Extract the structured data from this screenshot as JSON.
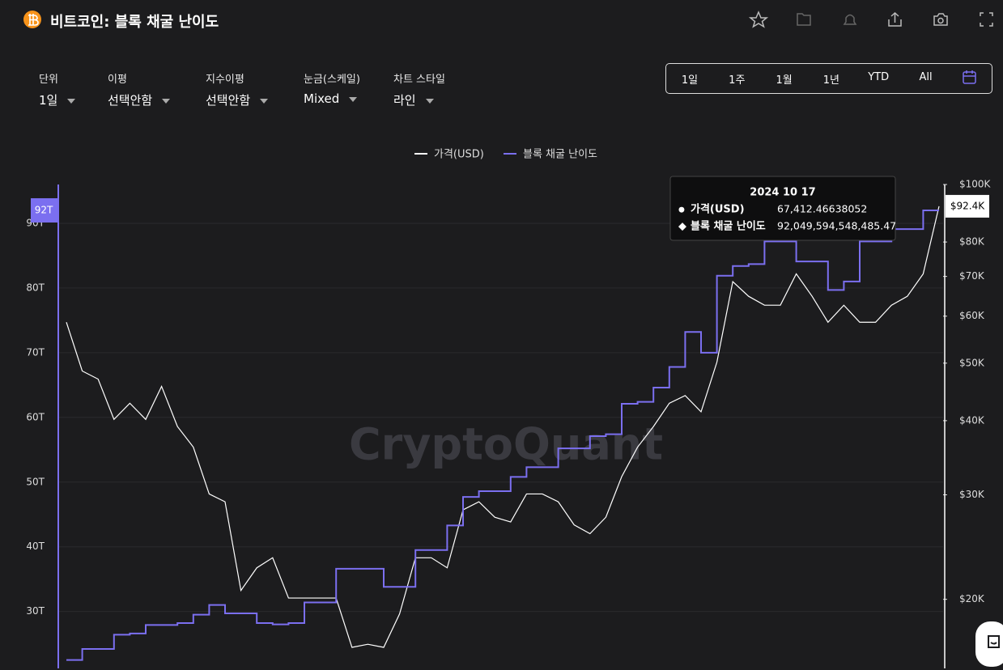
{
  "header": {
    "title": "비트코인: 블록 채굴 난이도"
  },
  "controls": [
    {
      "label": "단위",
      "value": "1일"
    },
    {
      "label": "이평",
      "value": "선택안함"
    },
    {
      "label": "지수이평",
      "value": "선택안함"
    },
    {
      "label": "눈금(스케일)",
      "value": "Mixed"
    },
    {
      "label": "차트 스타일",
      "value": "라인"
    }
  ],
  "time_buttons": [
    "1일",
    "1주",
    "1월",
    "1년",
    "YTD",
    "All"
  ],
  "watermark": "CryptoQuant",
  "tooltip": {
    "date": "2024 10 17",
    "rows": [
      {
        "label": "가격(USD)",
        "value": "67,412.46638052"
      },
      {
        "label": "블록 채굴 난이도",
        "value": "92,049,594,548,485.47"
      }
    ]
  },
  "chart_data": {
    "type": "line",
    "crosshair_labels": {
      "y": "92T",
      "y2": "$92.4K"
    },
    "ylim": [
      21.2,
      96
    ],
    "yticks": [
      {
        "value": 30,
        "label": "30T"
      },
      {
        "value": 40,
        "label": "40T"
      },
      {
        "value": 50,
        "label": "50T"
      },
      {
        "value": 60,
        "label": "60T"
      },
      {
        "value": 70,
        "label": "70T"
      },
      {
        "value": 80,
        "label": "80T"
      },
      {
        "value": 90,
        "label": "90T"
      }
    ],
    "y2lim": [
      15300,
      100000
    ],
    "y2_log": true,
    "y2ticks": [
      {
        "value": 20000,
        "label": "$20K"
      },
      {
        "value": 30000,
        "label": "$30K"
      },
      {
        "value": 40000,
        "label": "$40K"
      },
      {
        "value": 50000,
        "label": "$50K"
      },
      {
        "value": 60000,
        "label": "$60K"
      },
      {
        "value": 70000,
        "label": "$70K"
      },
      {
        "value": 80000,
        "label": "$80K"
      },
      {
        "value": 100000,
        "label": "$100K"
      }
    ],
    "grid": true,
    "series": [
      {
        "name": "가격(USD)",
        "color": "#ffffff",
        "axis": "y2",
        "values": [
          58600,
          48500,
          47000,
          40200,
          42800,
          40200,
          45700,
          39100,
          36100,
          30100,
          29200,
          20700,
          22600,
          23500,
          20100,
          20100,
          20100,
          20100,
          16600,
          16800,
          16600,
          18900,
          23500,
          23500,
          22600,
          28300,
          29200,
          27500,
          27000,
          30100,
          30100,
          29200,
          26700,
          25800,
          27500,
          32200,
          36100,
          39100,
          42800,
          44100,
          41400,
          50200,
          68600,
          64800,
          62600,
          62600,
          70700,
          64800,
          58600,
          62600,
          58600,
          58600,
          62600,
          64800,
          70700,
          91900
        ]
      },
      {
        "name": "블록 채굴 난이도",
        "color": "#7b6ff0",
        "step": true,
        "values": [
          22.5,
          24.2,
          24.2,
          26.4,
          26.6,
          27.9,
          27.9,
          28.2,
          29.5,
          31.0,
          29.7,
          29.7,
          28.2,
          28.0,
          28.2,
          31.4,
          31.4,
          36.6,
          36.6,
          36.6,
          33.8,
          33.8,
          39.5,
          39.5,
          43.3,
          47.7,
          48.6,
          48.6,
          50.8,
          52.3,
          52.3,
          55.2,
          55.2,
          57.1,
          57.4,
          62.1,
          62.4,
          64.6,
          67.8,
          73.2,
          70.0,
          81.9,
          83.4,
          83.7,
          87.2,
          87.2,
          84.1,
          84.1,
          79.7,
          81.0,
          87.2,
          87.2,
          89.1,
          89.1,
          92.0,
          92.0
        ]
      }
    ]
  }
}
